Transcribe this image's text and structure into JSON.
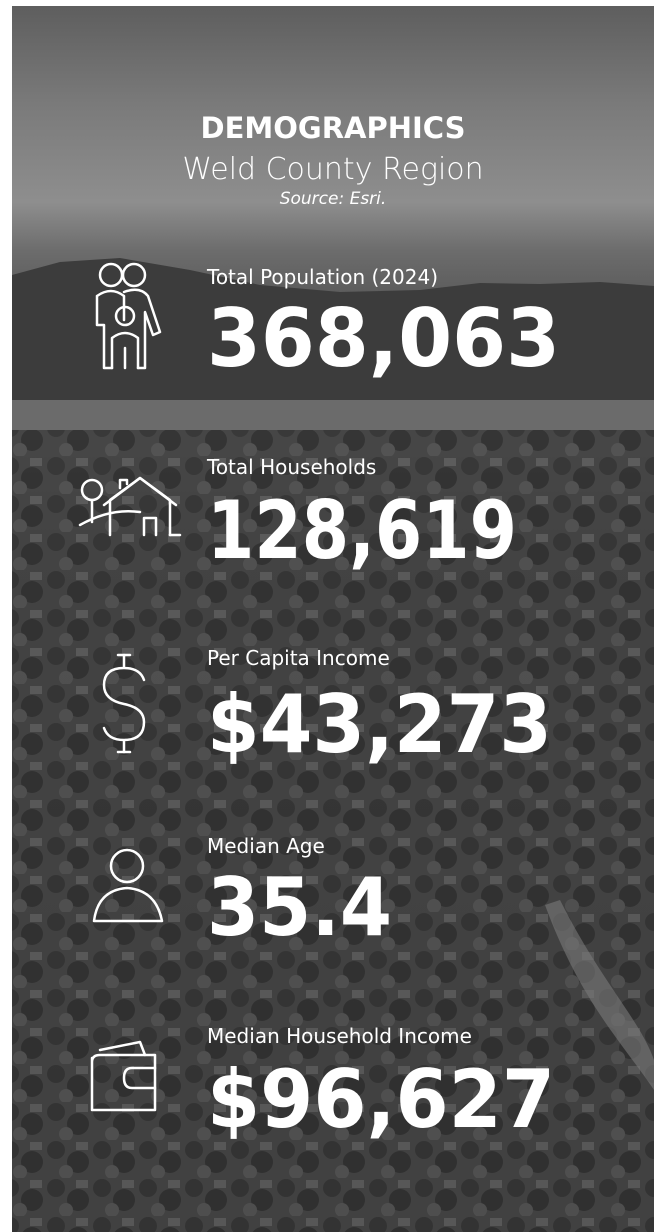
{
  "header": {
    "title": "DEMOGRAPHICS",
    "subtitle": "Weld County Region",
    "source": "Source: Esri."
  },
  "stats": [
    {
      "label": "Total Population (2024)",
      "value": "368,063"
    },
    {
      "label": "Total Households",
      "value": "128,619"
    },
    {
      "label": "Per Capita Income",
      "value": "$43,273"
    },
    {
      "label": "Median Age",
      "value": "35.4"
    },
    {
      "label": "Median Household Income",
      "value": "$96,627"
    }
  ]
}
